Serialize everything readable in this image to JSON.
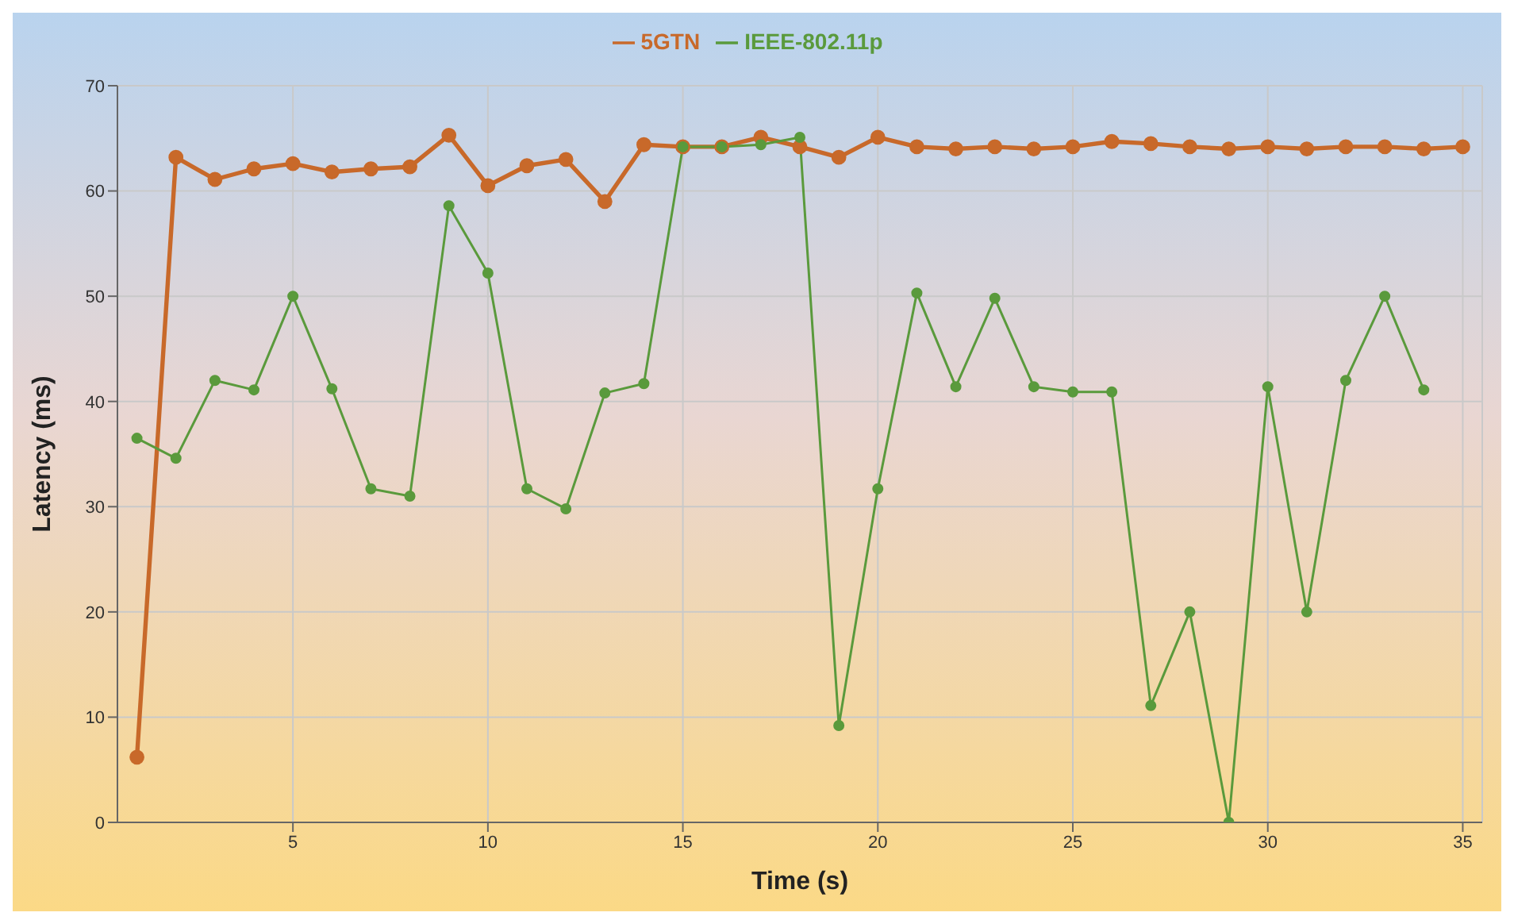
{
  "chart_data": {
    "type": "line",
    "xlabel": "Time (s)",
    "ylabel": "Latency (ms)",
    "xlim": [
      0.5,
      35.5
    ],
    "xticks": [
      5,
      10,
      15,
      20,
      25,
      30,
      35
    ],
    "ylim": [
      0,
      70
    ],
    "yticks": [
      0,
      10,
      20,
      30,
      40,
      50,
      60,
      70
    ],
    "grid": true,
    "legend": "top",
    "marker": "circle",
    "line_style": "solid",
    "series": [
      {
        "name": "5GTN",
        "color": "#c8692a",
        "x": [
          1,
          2,
          3,
          4,
          5,
          6,
          7,
          8,
          9,
          10,
          11,
          12,
          13,
          14,
          15,
          16,
          17,
          18,
          19,
          20,
          21,
          22,
          23,
          24,
          25,
          26,
          27,
          28,
          29,
          30,
          31,
          32,
          33,
          34,
          35
        ],
        "values": [
          6.2,
          63.2,
          61.1,
          62.1,
          62.6,
          61.8,
          62.1,
          62.3,
          65.3,
          60.5,
          62.4,
          63.0,
          59.0,
          64.4,
          64.2,
          64.2,
          65.1,
          64.2,
          63.2,
          65.1,
          64.2,
          64.0,
          64.2,
          64.0,
          64.2,
          64.7,
          64.5,
          64.2,
          64.0,
          64.2,
          64.0,
          64.2,
          64.2,
          64.0,
          64.2
        ]
      },
      {
        "name": "IEEE-802.11p",
        "color": "#5a9a3c",
        "x": [
          1,
          2,
          3,
          4,
          5,
          6,
          7,
          8,
          9,
          10,
          11,
          12,
          13,
          14,
          15,
          16,
          17,
          18,
          19,
          20,
          21,
          22,
          23,
          24,
          25,
          26,
          27,
          28,
          29,
          30,
          31,
          32,
          33,
          34
        ],
        "values": [
          36.5,
          34.6,
          42.0,
          41.1,
          50.0,
          41.2,
          31.7,
          31.0,
          58.6,
          52.2,
          31.7,
          29.8,
          40.8,
          41.7,
          64.2,
          64.2,
          64.4,
          65.1,
          9.2,
          31.7,
          50.3,
          41.4,
          49.8,
          41.4,
          40.9,
          40.9,
          11.1,
          20.0,
          0,
          41.4,
          20.0,
          42.0,
          50.0,
          41.1
        ]
      }
    ]
  }
}
